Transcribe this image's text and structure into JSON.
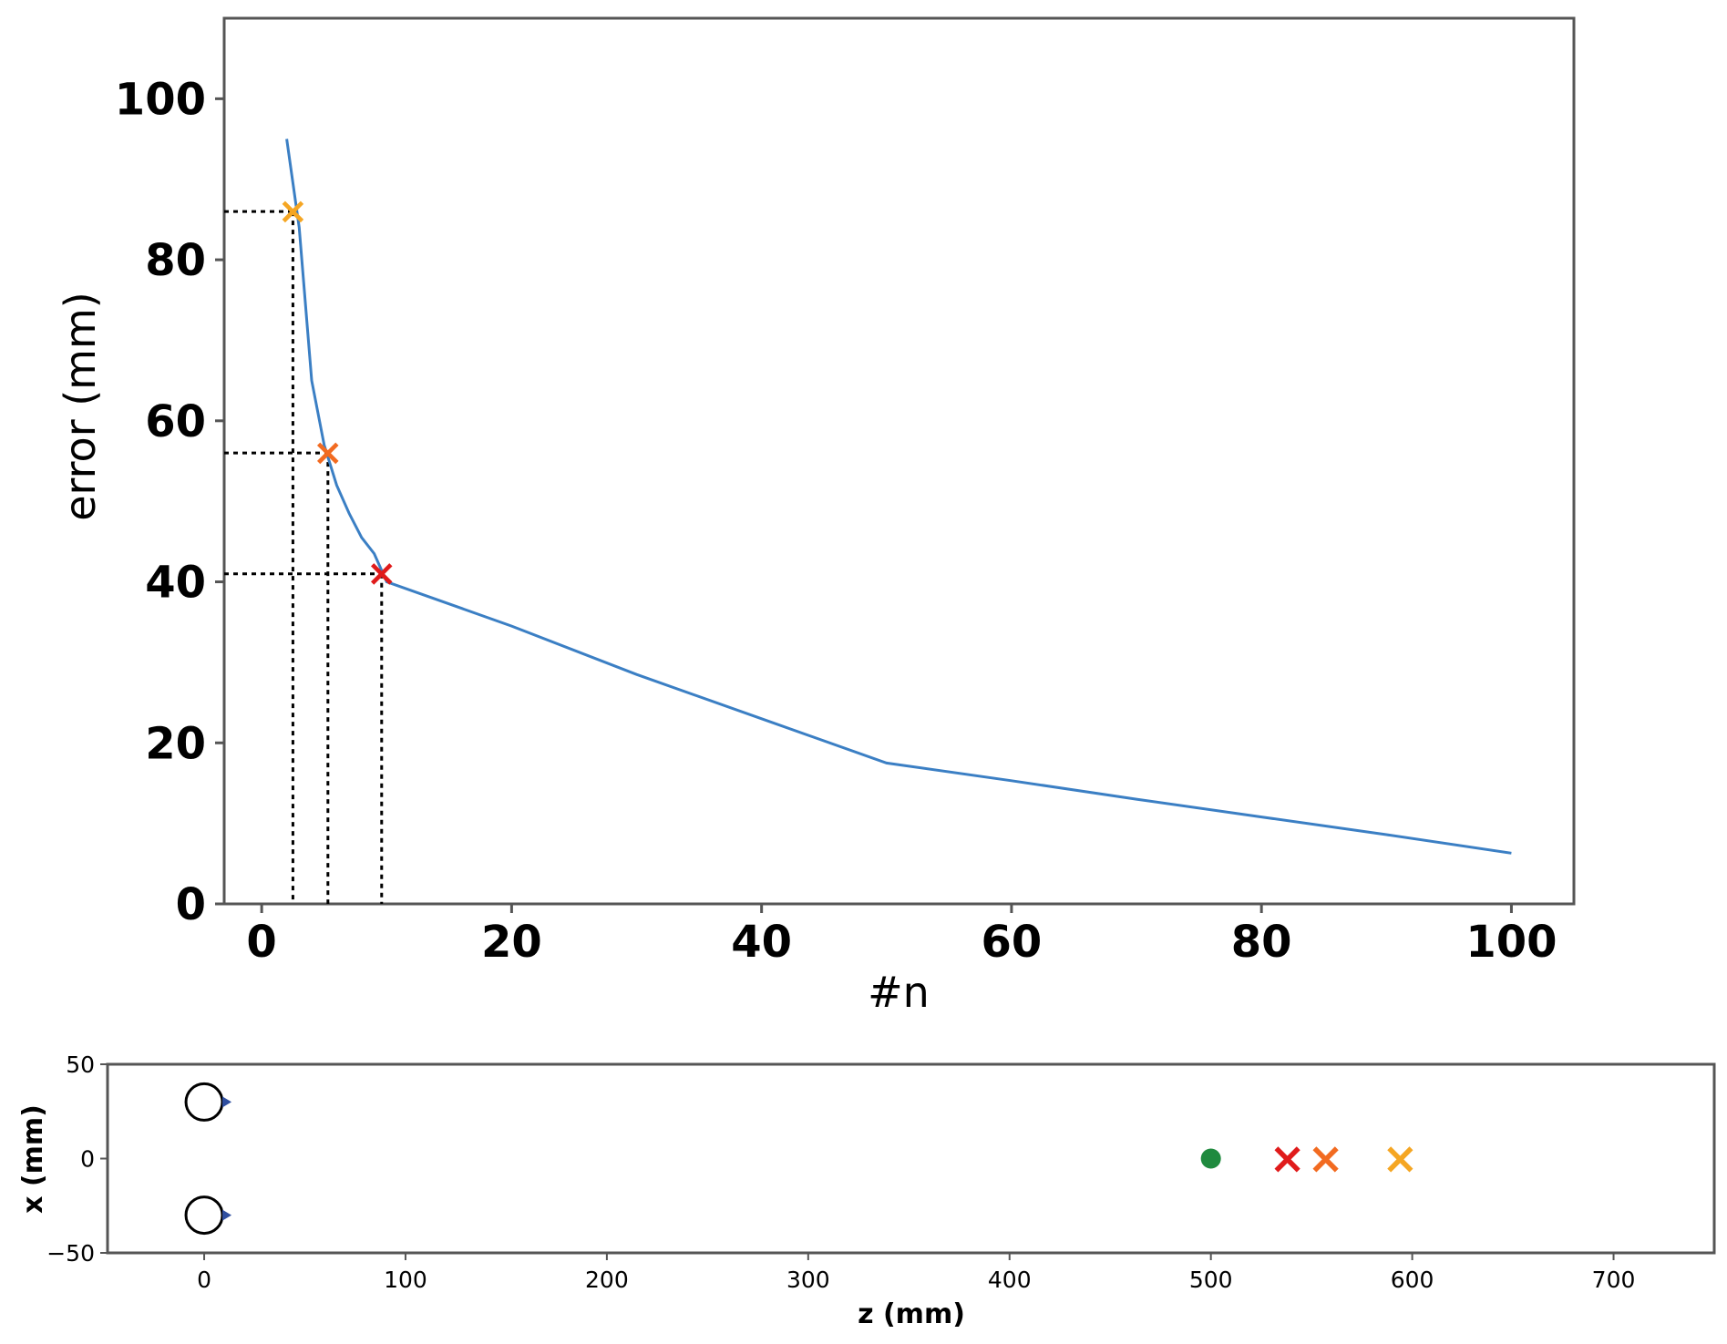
{
  "chart_data": [
    {
      "type": "line",
      "title": "",
      "xlabel": "#n",
      "ylabel": "error (mm)",
      "xlim": [
        -3,
        105
      ],
      "ylim": [
        0,
        110
      ],
      "xticks": [
        0,
        20,
        40,
        60,
        80,
        100
      ],
      "yticks": [
        0,
        20,
        40,
        60,
        80,
        100
      ],
      "series": [
        {
          "color": "#3b7fc4",
          "x": [
            2,
            3,
            4,
            5,
            6,
            7,
            8,
            9,
            10,
            20,
            30,
            40,
            50,
            60,
            70,
            80,
            90,
            100
          ],
          "y": [
            95,
            84,
            65,
            57,
            52,
            48.5,
            45.5,
            43.5,
            40,
            34.5,
            28.5,
            23,
            17.5,
            15.3,
            13,
            10.8,
            8.6,
            6.3
          ]
        }
      ],
      "highlights": [
        {
          "x": 2.5,
          "y": 86,
          "color": "#f5a623"
        },
        {
          "x": 5.3,
          "y": 56,
          "color": "#f26b21"
        },
        {
          "x": 9.6,
          "y": 41,
          "color": "#e01b1b"
        }
      ]
    },
    {
      "type": "scatter",
      "title": "",
      "xlabel": "z (mm)",
      "ylabel": "x (mm)",
      "xlim": [
        -48,
        750
      ],
      "ylim": [
        -50,
        50
      ],
      "xticks": [
        0,
        100,
        200,
        300,
        400,
        500,
        600,
        700
      ],
      "yticks": [
        50,
        0,
        -50
      ],
      "ytick_labels": [
        "50",
        "0",
        "−50"
      ],
      "circles": [
        {
          "x": 0,
          "y": 30,
          "edge": "#000000",
          "arrow": "#2f4fa0"
        },
        {
          "x": 0,
          "y": -30,
          "edge": "#000000",
          "arrow": "#2f4fa0"
        }
      ],
      "target": {
        "x": 500,
        "y": 0,
        "color": "#1f8a3e"
      },
      "estimates": [
        {
          "x": 538,
          "y": 0,
          "color": "#e01b1b"
        },
        {
          "x": 557,
          "y": 0,
          "color": "#f26b21"
        },
        {
          "x": 594,
          "y": 0,
          "color": "#f5a623"
        }
      ]
    }
  ]
}
